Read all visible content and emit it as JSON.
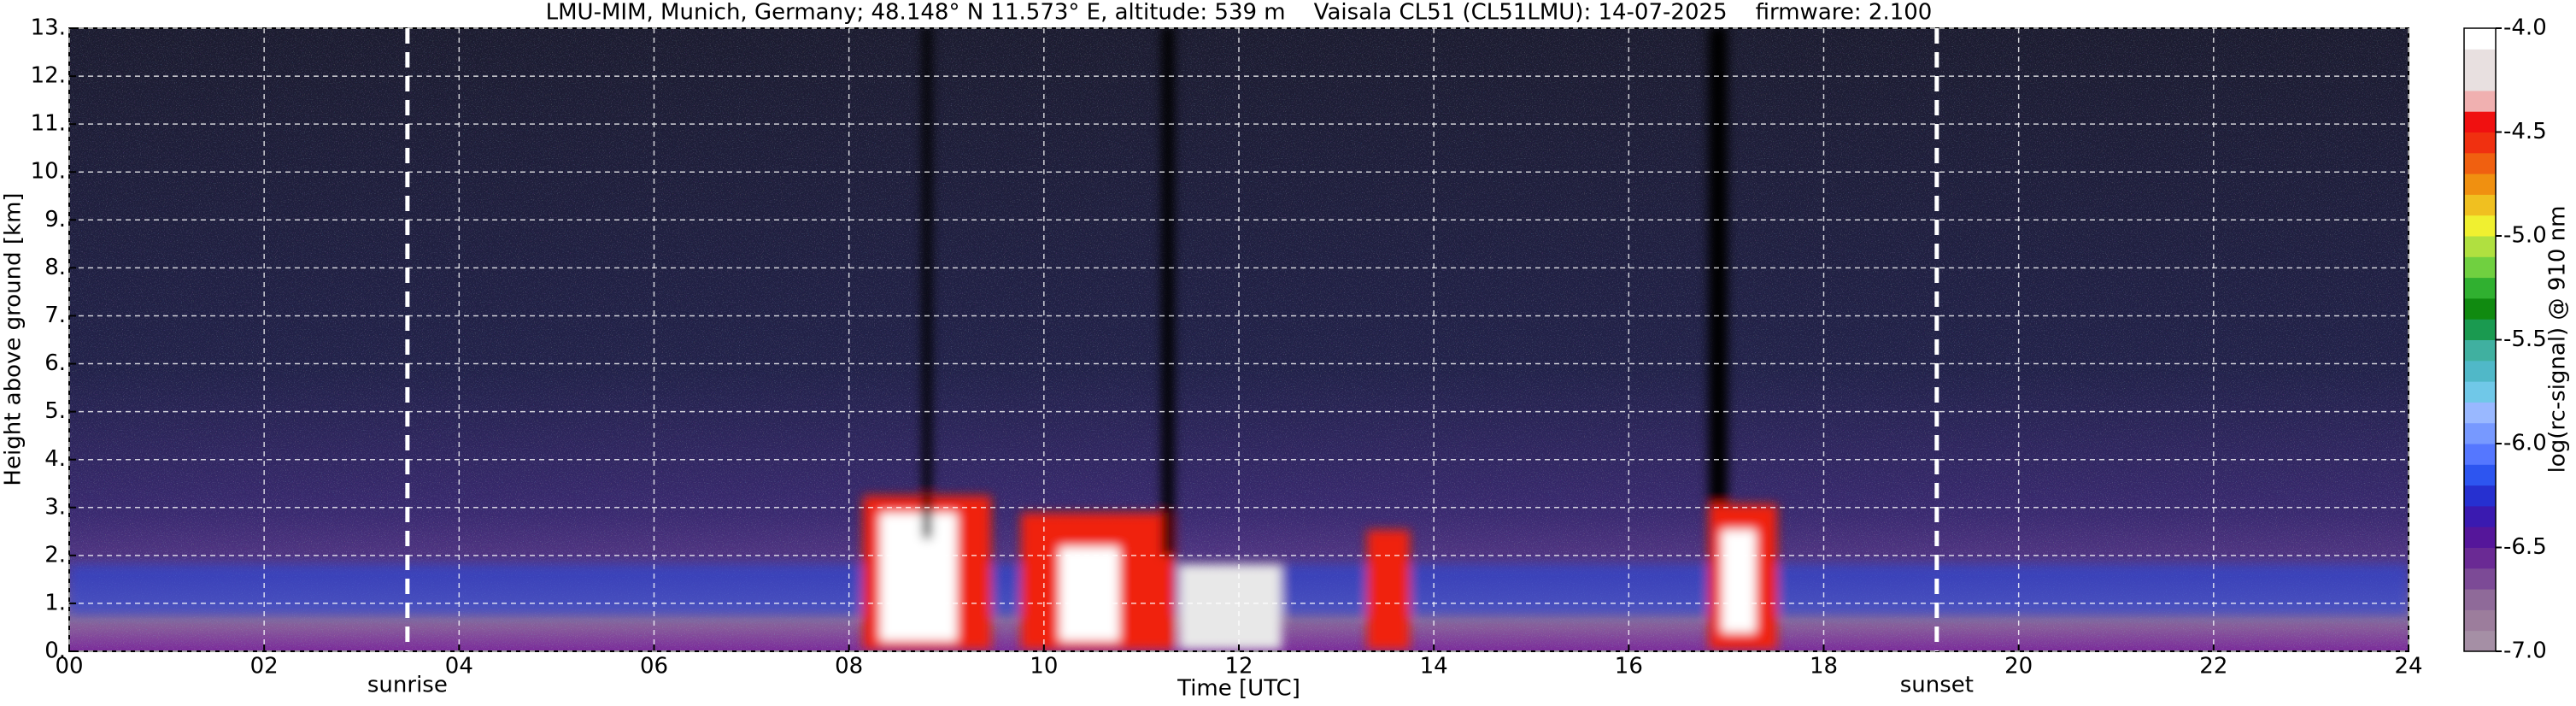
{
  "chart_data": {
    "type": "heatmap",
    "title": "LMU-MIM, Munich, Germany; 48.148° N 11.573° E, altitude: 539 m    Vaisala CL51 (CL51LMU): 14-07-2025    firmware: 2.100",
    "x_label": "Time [UTC]",
    "y_label": "Height above ground [km]",
    "xlim": [
      0,
      24
    ],
    "xticks": [
      {
        "value": 0,
        "label": "00"
      },
      {
        "value": 2,
        "label": "02"
      },
      {
        "value": 4,
        "label": "04"
      },
      {
        "value": 6,
        "label": "06"
      },
      {
        "value": 8,
        "label": "08"
      },
      {
        "value": 10,
        "label": "10"
      },
      {
        "value": 12,
        "label": "12"
      },
      {
        "value": 14,
        "label": "14"
      },
      {
        "value": 16,
        "label": "16"
      },
      {
        "value": 18,
        "label": "18"
      },
      {
        "value": 20,
        "label": "20"
      },
      {
        "value": 22,
        "label": "22"
      },
      {
        "value": 24,
        "label": "24"
      }
    ],
    "ylim": [
      0,
      13
    ],
    "yticks": [
      {
        "value": 0,
        "label": "0."
      },
      {
        "value": 1,
        "label": "1."
      },
      {
        "value": 2,
        "label": "2."
      },
      {
        "value": 3,
        "label": "3."
      },
      {
        "value": 4,
        "label": "4."
      },
      {
        "value": 5,
        "label": "5."
      },
      {
        "value": 6,
        "label": "6."
      },
      {
        "value": 7,
        "label": "7."
      },
      {
        "value": 8,
        "label": "8."
      },
      {
        "value": 9,
        "label": "9."
      },
      {
        "value": 10,
        "label": "10."
      },
      {
        "value": 11,
        "label": "11."
      },
      {
        "value": 12,
        "label": "12."
      },
      {
        "value": 13,
        "label": "13."
      }
    ],
    "grid": true,
    "annotations": [
      {
        "label": "sunrise",
        "x": 3.47
      },
      {
        "label": "sunset",
        "x": 19.16
      }
    ],
    "colorbar": {
      "label": "log(rc-signal) @ 910 nm",
      "clim": [
        -7.0,
        -4.0
      ],
      "ticks": [
        {
          "value": -7.0,
          "label": "-7.0"
        },
        {
          "value": -6.5,
          "label": "-6.5"
        },
        {
          "value": -6.0,
          "label": "-6.0"
        },
        {
          "value": -5.5,
          "label": "-5.5"
        },
        {
          "value": -5.0,
          "label": "-5.0"
        },
        {
          "value": -4.5,
          "label": "-4.5"
        },
        {
          "value": -4.0,
          "label": "-4.0"
        }
      ],
      "colors": [
        "#a58fa5",
        "#9c7d9c",
        "#8f6a99",
        "#7c4a96",
        "#6a2a94",
        "#55169a",
        "#3a1ab0",
        "#2630d0",
        "#2d55f0",
        "#5577ff",
        "#7799ff",
        "#99b8ff",
        "#70c8e8",
        "#50b8c8",
        "#40b0a0",
        "#1a9a50",
        "#108a10",
        "#30b030",
        "#70d040",
        "#b0e040",
        "#f0f030",
        "#f0c020",
        "#f09010",
        "#f06010",
        "#f03010",
        "#f01010",
        "#f0b0b0",
        "#e8e0e0",
        "#e8e0e0",
        "#ffffff"
      ]
    }
  }
}
